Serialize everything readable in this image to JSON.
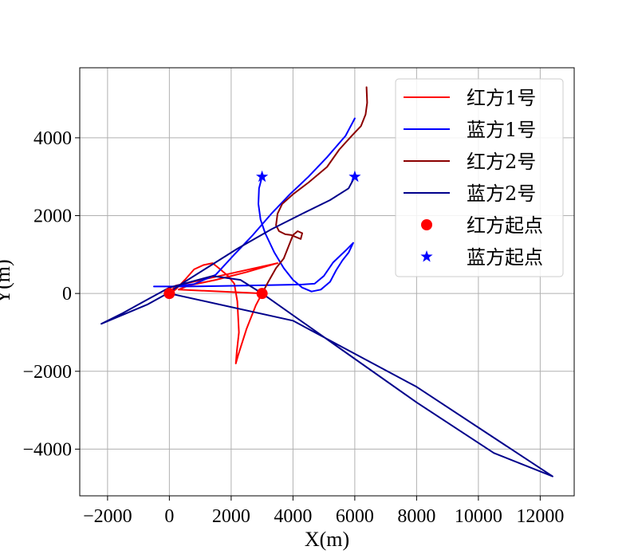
{
  "chart_data": {
    "type": "line",
    "xlabel": "X(m)",
    "ylabel": "Y(m)",
    "xlim": [
      -2900,
      13100
    ],
    "ylim": [
      -5200,
      5800
    ],
    "xticks": [
      -2000,
      0,
      2000,
      4000,
      6000,
      8000,
      10000,
      12000
    ],
    "yticks": [
      -4000,
      -2000,
      0,
      2000,
      4000
    ],
    "xtick_labels": [
      "−2000",
      "0",
      "2000",
      "4000",
      "6000",
      "8000",
      "10000",
      "12000"
    ],
    "ytick_labels": [
      "−4000",
      "−2000",
      "0",
      "2000",
      "4000"
    ],
    "grid": true,
    "legend_position": "top-right",
    "series": [
      {
        "name": "红方1号",
        "color": "#ff0000",
        "points": [
          [
            0,
            0
          ],
          [
            200,
            100
          ],
          [
            500,
            350
          ],
          [
            800,
            620
          ],
          [
            1100,
            730
          ],
          [
            1400,
            780
          ],
          [
            1600,
            650
          ],
          [
            1900,
            450
          ],
          [
            2100,
            250
          ],
          [
            2200,
            -200
          ],
          [
            2250,
            -1000
          ],
          [
            2180,
            -1500
          ],
          [
            2150,
            -1800
          ],
          [
            2220,
            -1600
          ],
          [
            2500,
            -900
          ],
          [
            2800,
            -300
          ],
          [
            3000,
            0
          ],
          [
            300,
            100
          ],
          [
            600,
            200
          ],
          [
            1500,
            350
          ],
          [
            2500,
            550
          ],
          [
            3500,
            780
          ],
          [
            200,
            200
          ],
          [
            0,
            0
          ]
        ]
      },
      {
        "name": "蓝方1号",
        "color": "#0000ff",
        "points": [
          [
            3000,
            3000
          ],
          [
            2900,
            2700
          ],
          [
            2880,
            2300
          ],
          [
            2950,
            1900
          ],
          [
            3100,
            1550
          ],
          [
            3400,
            1050
          ],
          [
            3700,
            650
          ],
          [
            4000,
            350
          ],
          [
            4300,
            150
          ],
          [
            4600,
            50
          ],
          [
            4900,
            100
          ],
          [
            5200,
            300
          ],
          [
            5400,
            600
          ],
          [
            5600,
            850
          ],
          [
            5800,
            1050
          ],
          [
            5950,
            1300
          ],
          [
            5700,
            1100
          ],
          [
            5300,
            800
          ],
          [
            5000,
            450
          ],
          [
            4700,
            250
          ],
          [
            4300,
            230
          ],
          [
            3000,
            210
          ],
          [
            1500,
            190
          ],
          [
            500,
            180
          ],
          [
            -500,
            180
          ],
          [
            100,
            180
          ],
          [
            800,
            240
          ],
          [
            1500,
            480
          ],
          [
            2100,
            1000
          ],
          [
            2700,
            1500
          ],
          [
            3300,
            2050
          ],
          [
            3900,
            2550
          ],
          [
            4500,
            3000
          ],
          [
            5100,
            3500
          ],
          [
            5700,
            4050
          ],
          [
            6000,
            4500
          ]
        ]
      },
      {
        "name": "红方2号",
        "color": "#8b0000",
        "points": [
          [
            3000,
            0
          ],
          [
            3200,
            300
          ],
          [
            3450,
            650
          ],
          [
            3700,
            900
          ],
          [
            3900,
            1300
          ],
          [
            4000,
            1500
          ],
          [
            4150,
            1600
          ],
          [
            4300,
            1550
          ],
          [
            4250,
            1400
          ],
          [
            4100,
            1450
          ],
          [
            3950,
            1500
          ],
          [
            3750,
            1520
          ],
          [
            3550,
            1600
          ],
          [
            3450,
            1750
          ],
          [
            3500,
            2050
          ],
          [
            3650,
            2300
          ],
          [
            4000,
            2550
          ],
          [
            4500,
            2850
          ],
          [
            5100,
            3250
          ],
          [
            5500,
            3700
          ],
          [
            5900,
            4050
          ],
          [
            6200,
            4300
          ],
          [
            6350,
            4600
          ],
          [
            6400,
            4900
          ],
          [
            6380,
            5300
          ]
        ]
      },
      {
        "name": "蓝方2号",
        "color": "#00008b",
        "points": [
          [
            6000,
            3000
          ],
          [
            5800,
            2700
          ],
          [
            5200,
            2400
          ],
          [
            4300,
            2050
          ],
          [
            3300,
            1650
          ],
          [
            2200,
            1150
          ],
          [
            1200,
            650
          ],
          [
            400,
            250
          ],
          [
            0,
            30
          ],
          [
            -700,
            -280
          ],
          [
            -2200,
            -780
          ],
          [
            -1500,
            -500
          ],
          [
            -700,
            -150
          ],
          [
            0,
            150
          ],
          [
            1400,
            450
          ],
          [
            2300,
            350
          ],
          [
            3000,
            0
          ],
          [
            5500,
            -1400
          ],
          [
            8000,
            -2800
          ],
          [
            10500,
            -4100
          ],
          [
            12400,
            -4700
          ],
          [
            8000,
            -2400
          ],
          [
            4000,
            -700
          ],
          [
            0,
            0
          ]
        ]
      }
    ],
    "markers": [
      {
        "name": "红方起点",
        "color": "#ff0000",
        "shape": "circle",
        "points": [
          [
            0,
            0
          ],
          [
            3000,
            0
          ]
        ]
      },
      {
        "name": "蓝方起点",
        "color": "#0000ff",
        "shape": "star",
        "points": [
          [
            3000,
            3000
          ],
          [
            6000,
            3000
          ]
        ]
      }
    ]
  }
}
